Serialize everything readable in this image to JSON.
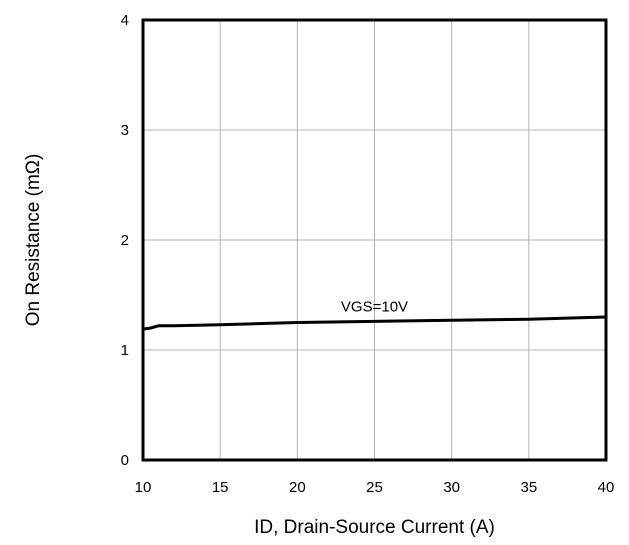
{
  "chart_data": {
    "type": "line",
    "title": "",
    "xlabel": "ID, Drain-Source Current (A)",
    "ylabel": "On Resistance (mΩ)",
    "xlim": [
      10,
      40
    ],
    "ylim": [
      0,
      4
    ],
    "xticks": [
      10,
      15,
      20,
      25,
      30,
      35,
      40
    ],
    "yticks": [
      0,
      1,
      2,
      3,
      4
    ],
    "grid": true,
    "series": [
      {
        "name": "VGS=10V",
        "x": [
          10,
          10.5,
          11,
          12,
          15,
          20,
          25,
          30,
          35,
          40
        ],
        "y": [
          1.19,
          1.2,
          1.22,
          1.22,
          1.23,
          1.25,
          1.26,
          1.27,
          1.28,
          1.3
        ],
        "color": "#000000"
      }
    ],
    "annotations": [
      {
        "text": "VGS=10V",
        "x": 25,
        "y": 1.35
      }
    ]
  }
}
